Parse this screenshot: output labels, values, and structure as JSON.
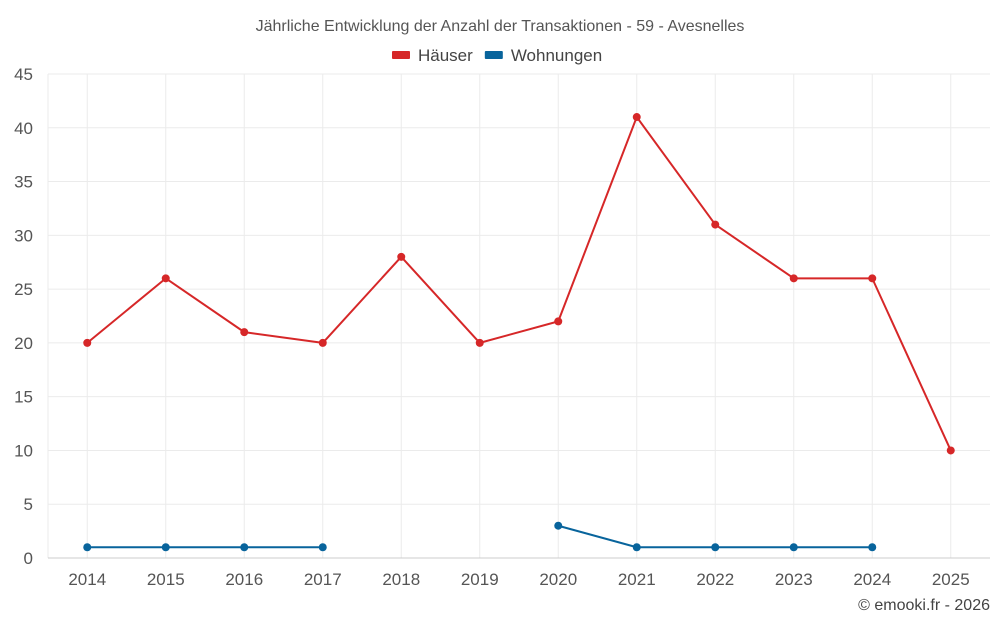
{
  "chart_data": {
    "type": "line",
    "title": "Jährliche Entwicklung der Anzahl der Transaktionen - 59 - Avesnelles",
    "xlabel": "",
    "ylabel": "",
    "categories": [
      "2014",
      "2015",
      "2016",
      "2017",
      "2018",
      "2019",
      "2020",
      "2021",
      "2022",
      "2023",
      "2024",
      "2025"
    ],
    "ylim": [
      0,
      45
    ],
    "yticks": [
      0,
      5,
      10,
      15,
      20,
      25,
      30,
      35,
      40,
      45
    ],
    "grid": true,
    "legend_position": "top-center",
    "series": [
      {
        "name": "Häuser",
        "color": "#d62728",
        "values": [
          20,
          26,
          21,
          20,
          28,
          20,
          22,
          41,
          31,
          26,
          26,
          10
        ]
      },
      {
        "name": "Wohnungen",
        "color": "#08649c",
        "values": [
          1,
          1,
          1,
          1,
          null,
          null,
          3,
          1,
          1,
          1,
          1,
          null
        ]
      }
    ]
  },
  "credit": "© emooki.fr - 2026"
}
